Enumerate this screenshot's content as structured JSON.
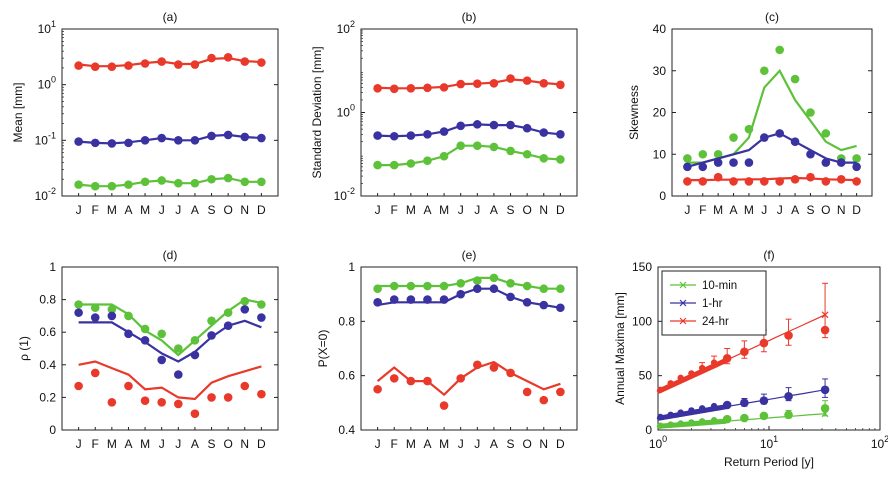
{
  "colors": {
    "red": "#e8392b",
    "blue": "#3a32a0",
    "green": "#5dc23a"
  },
  "chart_data": [
    {
      "panel": "a",
      "label": "(a)",
      "type": "scatter",
      "ylabel": "Mean [mm]",
      "yscale": "log",
      "ylim": [
        0.01,
        10
      ],
      "yticks": [
        0.01,
        0.1,
        1,
        10
      ],
      "ytick_labels": [
        [
          "10",
          "-2"
        ],
        [
          "10",
          "-1"
        ],
        [
          "10",
          "0"
        ],
        [
          "10",
          "1"
        ]
      ],
      "categories": [
        "J",
        "F",
        "M",
        "A",
        "M",
        "J",
        "J",
        "A",
        "S",
        "O",
        "N",
        "D"
      ],
      "series": [
        {
          "color": "red",
          "values": [
            2.2,
            2.1,
            2.1,
            2.2,
            2.4,
            2.6,
            2.3,
            2.3,
            3.0,
            3.1,
            2.6,
            2.5
          ],
          "line": [
            2.3,
            2.15,
            2.15,
            2.25,
            2.45,
            2.6,
            2.35,
            2.35,
            2.9,
            3.0,
            2.65,
            2.55
          ]
        },
        {
          "color": "blue",
          "values": [
            0.095,
            0.09,
            0.088,
            0.09,
            0.1,
            0.11,
            0.1,
            0.1,
            0.12,
            0.125,
            0.115,
            0.11
          ],
          "line": [
            0.095,
            0.09,
            0.088,
            0.092,
            0.1,
            0.11,
            0.1,
            0.1,
            0.12,
            0.125,
            0.115,
            0.11
          ]
        },
        {
          "color": "green",
          "values": [
            0.016,
            0.015,
            0.015,
            0.016,
            0.018,
            0.019,
            0.017,
            0.017,
            0.02,
            0.021,
            0.018,
            0.018
          ],
          "line": [
            0.016,
            0.015,
            0.015,
            0.016,
            0.018,
            0.019,
            0.017,
            0.017,
            0.02,
            0.021,
            0.018,
            0.018
          ]
        }
      ]
    },
    {
      "panel": "b",
      "label": "(b)",
      "type": "scatter",
      "ylabel": "Standard Deviation [mm]",
      "yscale": "log",
      "ylim": [
        0.01,
        100
      ],
      "yticks": [
        0.01,
        1,
        100
      ],
      "ytick_labels": [
        [
          "10",
          "-2"
        ],
        [
          "10",
          "0"
        ],
        [
          "10",
          "2"
        ]
      ],
      "categories": [
        "J",
        "F",
        "M",
        "A",
        "M",
        "J",
        "J",
        "A",
        "S",
        "O",
        "N",
        "D"
      ],
      "series": [
        {
          "color": "red",
          "values": [
            3.8,
            3.7,
            3.8,
            3.9,
            4.0,
            4.8,
            4.9,
            5.0,
            6.5,
            5.8,
            5.0,
            4.6
          ],
          "line": [
            3.9,
            3.8,
            3.8,
            3.9,
            4.1,
            4.8,
            4.9,
            5.2,
            6.2,
            5.8,
            5.1,
            4.7
          ]
        },
        {
          "color": "blue",
          "values": [
            0.28,
            0.27,
            0.28,
            0.3,
            0.35,
            0.48,
            0.52,
            0.5,
            0.5,
            0.42,
            0.33,
            0.3
          ],
          "line": [
            0.28,
            0.27,
            0.28,
            0.3,
            0.35,
            0.48,
            0.52,
            0.5,
            0.5,
            0.42,
            0.33,
            0.3
          ]
        },
        {
          "color": "green",
          "values": [
            0.055,
            0.055,
            0.06,
            0.07,
            0.09,
            0.16,
            0.16,
            0.15,
            0.12,
            0.1,
            0.08,
            0.075
          ],
          "line": [
            0.055,
            0.055,
            0.06,
            0.07,
            0.09,
            0.16,
            0.16,
            0.15,
            0.12,
            0.1,
            0.08,
            0.075
          ]
        }
      ]
    },
    {
      "panel": "c",
      "label": "(c)",
      "type": "scatter",
      "ylabel": "Skewness",
      "yscale": "linear",
      "ylim": [
        0,
        40
      ],
      "yticks": [
        0,
        10,
        20,
        30,
        40
      ],
      "ytick_labels": [
        "0",
        "10",
        "20",
        "30",
        "40"
      ],
      "categories": [
        "J",
        "F",
        "M",
        "A",
        "M",
        "J",
        "J",
        "A",
        "S",
        "O",
        "N",
        "D"
      ],
      "series": [
        {
          "color": "green",
          "values": [
            9,
            10,
            10,
            14,
            16,
            30,
            35,
            28,
            20,
            15,
            9,
            9
          ],
          "line": [
            8,
            8,
            9,
            10,
            14,
            26,
            30,
            23,
            18,
            13,
            11,
            12
          ]
        },
        {
          "color": "blue",
          "values": [
            7,
            7,
            8,
            8,
            8,
            14,
            15,
            13,
            10,
            8,
            8,
            7
          ],
          "line": [
            7,
            8,
            9,
            10,
            11,
            14,
            15,
            13,
            11,
            9,
            8,
            8
          ]
        },
        {
          "color": "red",
          "values": [
            3.5,
            3.5,
            4.5,
            3.5,
            3.5,
            3.5,
            3.5,
            4.0,
            4.5,
            3.5,
            4.0,
            3.5
          ],
          "line": [
            3.8,
            3.8,
            3.9,
            3.9,
            4.0,
            4.0,
            4.2,
            4.3,
            4.2,
            4.0,
            3.9,
            3.8
          ]
        }
      ]
    },
    {
      "panel": "d",
      "label": "(d)",
      "type": "scatter",
      "ylabel": "ρ (1)",
      "yscale": "linear",
      "ylim": [
        0,
        1
      ],
      "yticks": [
        0,
        0.2,
        0.4,
        0.6,
        0.8,
        1
      ],
      "ytick_labels": [
        "0",
        "0.2",
        "0.4",
        "0.6",
        "0.8",
        "1"
      ],
      "categories": [
        "J",
        "F",
        "M",
        "A",
        "M",
        "J",
        "J",
        "A",
        "S",
        "O",
        "N",
        "D"
      ],
      "series": [
        {
          "color": "green",
          "values": [
            0.77,
            0.75,
            0.74,
            0.7,
            0.62,
            0.59,
            0.5,
            0.55,
            0.67,
            0.72,
            0.79,
            0.77
          ],
          "line": [
            0.77,
            0.77,
            0.77,
            0.71,
            0.61,
            0.55,
            0.46,
            0.55,
            0.64,
            0.73,
            0.8,
            0.78
          ]
        },
        {
          "color": "blue",
          "values": [
            0.72,
            0.69,
            0.7,
            0.59,
            0.55,
            0.43,
            0.34,
            0.46,
            0.58,
            0.64,
            0.74,
            0.69
          ],
          "line": [
            0.66,
            0.66,
            0.66,
            0.6,
            0.54,
            0.47,
            0.42,
            0.48,
            0.57,
            0.64,
            0.67,
            0.63
          ]
        },
        {
          "color": "red",
          "values": [
            0.27,
            0.35,
            0.17,
            0.27,
            0.18,
            0.17,
            0.16,
            0.1,
            0.2,
            0.2,
            0.27,
            0.22
          ],
          "line": [
            0.4,
            0.42,
            0.38,
            0.34,
            0.25,
            0.26,
            0.2,
            0.19,
            0.29,
            0.33,
            0.36,
            0.39
          ]
        }
      ]
    },
    {
      "panel": "e",
      "label": "(e)",
      "type": "scatter",
      "ylabel": "P(X=0)",
      "yscale": "linear",
      "ylim": [
        0.4,
        1
      ],
      "yticks": [
        0.4,
        0.6,
        0.8,
        1
      ],
      "ytick_labels": [
        "0.4",
        "0.6",
        "0.8",
        "1"
      ],
      "categories": [
        "J",
        "F",
        "M",
        "A",
        "M",
        "J",
        "J",
        "A",
        "S",
        "O",
        "N",
        "D"
      ],
      "series": [
        {
          "color": "green",
          "values": [
            0.92,
            0.93,
            0.93,
            0.93,
            0.93,
            0.94,
            0.95,
            0.96,
            0.94,
            0.93,
            0.92,
            0.92
          ],
          "line": [
            0.93,
            0.93,
            0.93,
            0.93,
            0.93,
            0.94,
            0.96,
            0.96,
            0.94,
            0.93,
            0.92,
            0.92
          ]
        },
        {
          "color": "blue",
          "values": [
            0.87,
            0.88,
            0.88,
            0.88,
            0.88,
            0.9,
            0.92,
            0.92,
            0.89,
            0.87,
            0.86,
            0.85
          ],
          "line": [
            0.86,
            0.87,
            0.87,
            0.87,
            0.87,
            0.9,
            0.92,
            0.92,
            0.89,
            0.87,
            0.86,
            0.85
          ]
        },
        {
          "color": "red",
          "values": [
            0.55,
            0.59,
            0.58,
            0.58,
            0.49,
            0.59,
            0.64,
            0.63,
            0.61,
            0.54,
            0.51,
            0.54
          ],
          "line": [
            0.58,
            0.63,
            0.58,
            0.58,
            0.53,
            0.59,
            0.63,
            0.65,
            0.61,
            0.58,
            0.55,
            0.57
          ]
        }
      ]
    },
    {
      "panel": "f",
      "label": "(f)",
      "type": "scatter",
      "xlabel": "Return Period [y]",
      "ylabel": "Annual Maxima [mm]",
      "xscale": "log",
      "xlim": [
        1,
        100
      ],
      "xticks": [
        1,
        10,
        100
      ],
      "xtick_labels": [
        [
          "10",
          "0"
        ],
        [
          "10",
          "1"
        ],
        [
          "10",
          "2"
        ]
      ],
      "ylim": [
        0,
        150
      ],
      "yticks": [
        0,
        50,
        100,
        150
      ],
      "ytick_labels": [
        "0",
        "50",
        "100",
        "150"
      ],
      "legend_position": "top-left",
      "series": [
        {
          "name": "10-min",
          "color": "green",
          "x": [
            1.05,
            1.3,
            1.6,
            2.0,
            2.5,
            3.2,
            4.2,
            6.0,
            9.0,
            15.0,
            32.0
          ],
          "y": [
            4,
            5,
            6,
            7,
            8,
            9,
            10,
            11,
            13,
            14,
            20
          ],
          "fit_x": [
            1.03,
            32
          ],
          "fit_y": [
            3.5,
            15
          ],
          "err_y": [
            [
              0,
              0
            ],
            [
              0,
              0
            ],
            [
              0,
              0
            ],
            [
              0,
              0
            ],
            [
              0,
              0
            ],
            [
              0,
              0
            ],
            [
              0,
              0
            ],
            [
              0,
              0
            ],
            [
              11,
              15
            ],
            [
              11,
              18
            ],
            [
              13,
              27
            ]
          ]
        },
        {
          "name": "1-hr",
          "color": "blue",
          "x": [
            1.05,
            1.3,
            1.6,
            2.0,
            2.5,
            3.2,
            4.2,
            6.0,
            9.0,
            15.0,
            32.0
          ],
          "y": [
            12,
            14,
            16,
            18,
            20,
            22,
            23,
            25,
            27,
            31,
            37
          ],
          "fit_x": [
            1.03,
            32
          ],
          "fit_y": [
            11,
            37
          ],
          "err_y": [
            [
              0,
              0
            ],
            [
              0,
              0
            ],
            [
              0,
              0
            ],
            [
              0,
              0
            ],
            [
              0,
              0
            ],
            [
              0,
              0
            ],
            [
              0,
              0
            ],
            [
              22,
              29
            ],
            [
              24,
              33
            ],
            [
              27,
              39
            ],
            [
              30,
              47
            ]
          ]
        },
        {
          "name": "24-hr",
          "color": "red",
          "x": [
            1.05,
            1.3,
            1.6,
            2.0,
            2.5,
            3.2,
            4.2,
            6.0,
            9.0,
            15.0,
            32.0
          ],
          "y": [
            37,
            43,
            48,
            52,
            57,
            62,
            66,
            72,
            80,
            87,
            92
          ],
          "fit_x": [
            1.03,
            32
          ],
          "fit_y": [
            36,
            106
          ],
          "err_y": [
            [
              0,
              0
            ],
            [
              0,
              0
            ],
            [
              0,
              0
            ],
            [
              0,
              0
            ],
            [
              54,
              62
            ],
            [
              58,
              68
            ],
            [
              61,
              75
            ],
            [
              66,
              82
            ],
            [
              72,
              92
            ],
            [
              78,
              102
            ],
            [
              85,
              135
            ]
          ]
        }
      ]
    }
  ]
}
